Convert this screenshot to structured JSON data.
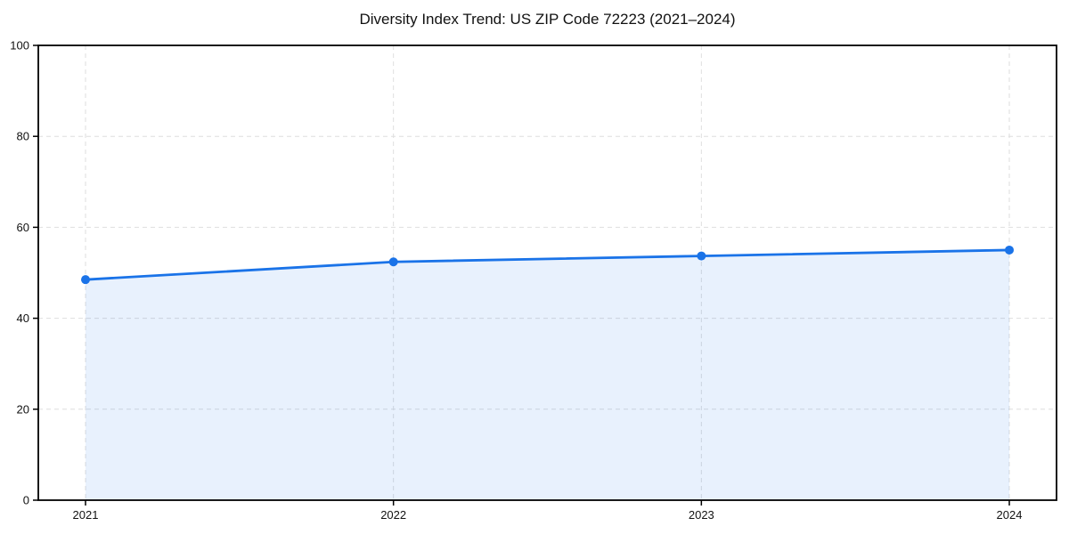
{
  "chart_data": {
    "type": "line",
    "title": "Diversity Index Trend: US ZIP Code 72223 (2021–2024)",
    "categories": [
      "2021",
      "2022",
      "2023",
      "2024"
    ],
    "series": [
      {
        "name": "Diversity Index",
        "values": [
          48.5,
          52.4,
          53.7,
          55.0
        ]
      }
    ],
    "xlabel": "",
    "ylabel": "",
    "ylim": [
      0,
      100
    ],
    "yticks": [
      0,
      20,
      40,
      60,
      80,
      100
    ],
    "grid": "dashed-both",
    "legend_position": "none",
    "marker": "circle",
    "colors": {
      "line": "#1a73e8",
      "marker": "#1a73e8",
      "area_fill": "#1a73e8",
      "area_fill_opacity": 0.1,
      "gridline": "#dedede",
      "spine": "#000000",
      "tick_text": "#111111",
      "background": "#ffffff"
    }
  }
}
